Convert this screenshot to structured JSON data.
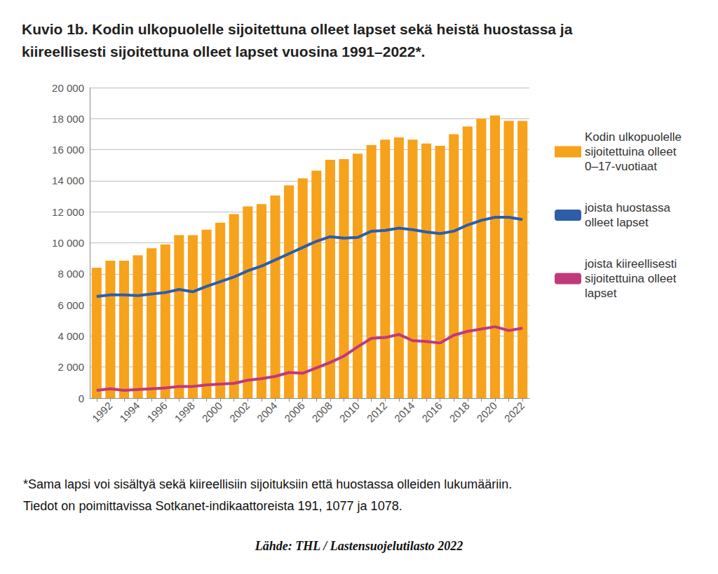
{
  "chart_data": {
    "type": "bar",
    "title": "Kuvio 1b. Kodin ulkopuolelle sijoitettuna olleet lapset sekä heistä huostassa ja\nkiireellisesti sijoitettuna olleet lapset vuosina 1991–2022*.",
    "notes": [
      "*Sama lapsi voi sisältyä sekä kiireellisiin sijoituksiin että huostassa olleiden lukumääriin.",
      "Tiedot on poimittavissa Sotkanet-indikaattoreista 191, 1077 ja 1078."
    ],
    "source": "Lähde: THL / Lastensuojelutilasto 2022",
    "categories": [
      null,
      "1992",
      null,
      "1994",
      null,
      "1996",
      null,
      "1998",
      null,
      "2000",
      null,
      "2002",
      null,
      "2004",
      null,
      "2006",
      null,
      "2008",
      null,
      "2010",
      null,
      "2012",
      null,
      "2014",
      null,
      "2016",
      null,
      "2018",
      null,
      "2020",
      null,
      "2022"
    ],
    "series": [
      {
        "name": "Kodin ulkopuolelle sijoitettuina olleet 0–17-vuotiaat",
        "type": "bar",
        "color": "#f7a21b",
        "values": [
          8400,
          8850,
          8850,
          9200,
          9650,
          9900,
          10500,
          10500,
          10850,
          11300,
          11850,
          12350,
          12500,
          13050,
          13700,
          14150,
          14650,
          15350,
          15400,
          15750,
          16300,
          16650,
          16800,
          16650,
          16400,
          16250,
          17000,
          17500,
          18000,
          18200,
          17850,
          17850
        ]
      },
      {
        "name": "joista huostassa olleet lapset",
        "type": "line",
        "color": "#2e5da8",
        "values": [
          6550,
          6650,
          6650,
          6600,
          6700,
          6800,
          7000,
          6850,
          7200,
          7500,
          7800,
          8200,
          8500,
          8900,
          9300,
          9700,
          10100,
          10400,
          10300,
          10350,
          10750,
          10800,
          10950,
          10850,
          10700,
          10600,
          10750,
          11150,
          11450,
          11650,
          11650,
          11500
        ]
      },
      {
        "name": "joista kiireellisesti sijoitettuina olleet lapset",
        "type": "line",
        "color": "#c0397a",
        "values": [
          500,
          600,
          500,
          550,
          600,
          650,
          750,
          750,
          850,
          900,
          950,
          1150,
          1250,
          1400,
          1650,
          1600,
          1950,
          2300,
          2700,
          3300,
          3850,
          3900,
          4100,
          3700,
          3650,
          3550,
          4050,
          4300,
          4450,
          4600,
          4350,
          4500
        ]
      }
    ],
    "ylim": [
      0,
      20000
    ],
    "yticks": [
      0,
      {
        "value": 2000,
        "label": "2 000"
      },
      {
        "value": 4000,
        "label": "4 000"
      },
      {
        "value": 6000,
        "label": "6 000"
      },
      {
        "value": 8000,
        "label": "8 000"
      },
      {
        "value": 10000,
        "label": "10 000"
      },
      {
        "value": 12000,
        "label": "12 000"
      },
      {
        "value": 14000,
        "label": "14 000"
      },
      {
        "value": 16000,
        "label": "16 000"
      },
      {
        "value": 18000,
        "label": "18 000"
      },
      {
        "value": 20000,
        "label": "20 000"
      }
    ],
    "grid": true,
    "legend": "right"
  }
}
